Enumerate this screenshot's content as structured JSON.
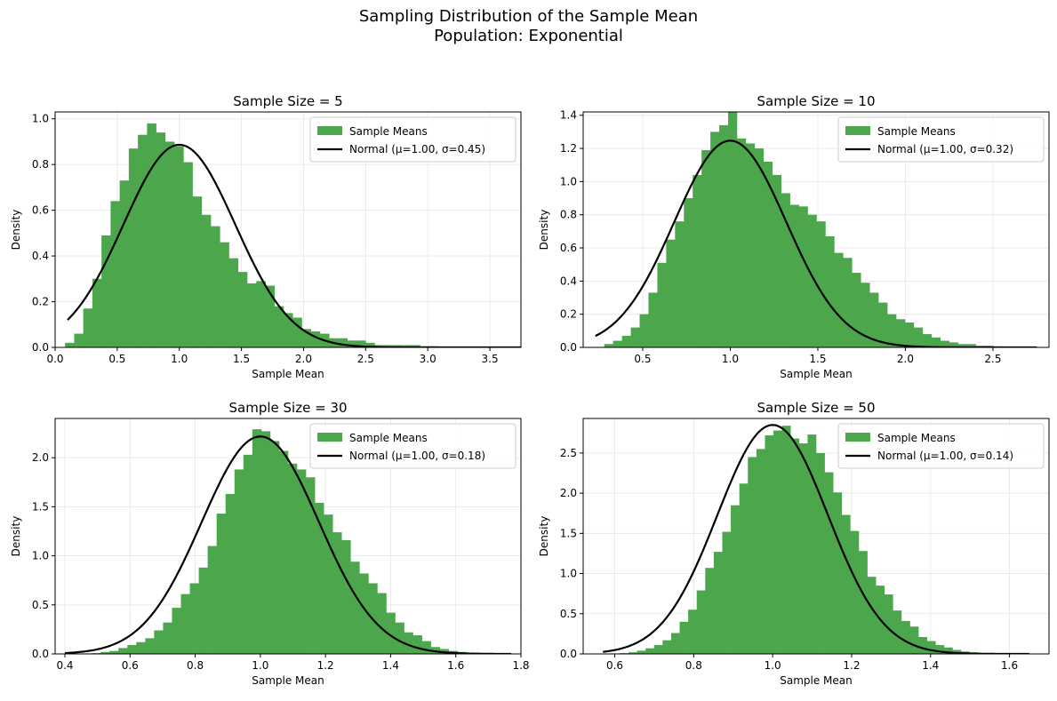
{
  "figure": {
    "title_line1": "Sampling Distribution of the Sample Mean",
    "title_line2": "Population: Exponential",
    "bar_color": "#4ca64c",
    "curve_color": "#000000"
  },
  "chart_data": [
    {
      "type": "bar",
      "title": "Sample Size = 5",
      "xlabel": "Sample Mean",
      "ylabel": "Density",
      "xlim": [
        0.0,
        3.75
      ],
      "ylim": [
        0,
        1.03
      ],
      "xticks": [
        "0.0",
        "0.5",
        "1.0",
        "1.5",
        "2.0",
        "2.5",
        "3.0",
        "3.5"
      ],
      "xtick_values": [
        0.0,
        0.5,
        1.0,
        1.5,
        2.0,
        2.5,
        3.0,
        3.5
      ],
      "yticks": [
        "0.0",
        "0.2",
        "0.4",
        "0.6",
        "0.8",
        "1.0"
      ],
      "ytick_values": [
        0.0,
        0.2,
        0.4,
        0.6,
        0.8,
        1.0
      ],
      "grid": true,
      "legend_position": "top-right",
      "bin_start": 0.08,
      "bin_width": 0.0733,
      "values": [
        0.02,
        0.06,
        0.17,
        0.3,
        0.49,
        0.64,
        0.73,
        0.87,
        0.93,
        0.98,
        0.94,
        0.9,
        0.88,
        0.81,
        0.66,
        0.58,
        0.53,
        0.46,
        0.39,
        0.33,
        0.28,
        0.29,
        0.27,
        0.18,
        0.15,
        0.13,
        0.08,
        0.07,
        0.06,
        0.04,
        0.04,
        0.03,
        0.03,
        0.02,
        0.01,
        0.01,
        0.01,
        0.01,
        0.01,
        0.005,
        0.005,
        0.003,
        0.003,
        0.003,
        0.002,
        0.002,
        0.002,
        0.001,
        0.001,
        0.001
      ],
      "series": [
        {
          "name": "Sample Means",
          "kind": "histogram"
        },
        {
          "name": "Normal (μ=1.00, σ=0.45)",
          "kind": "line",
          "mu": 1.0,
          "sigma": 0.45,
          "x_start": 0.1,
          "x_end": 3.75
        }
      ]
    },
    {
      "type": "bar",
      "title": "Sample Size = 10",
      "xlabel": "Sample Mean",
      "ylabel": "Density",
      "xlim": [
        0.16,
        2.82
      ],
      "ylim": [
        0,
        1.42
      ],
      "xticks": [
        "0.5",
        "1.0",
        "1.5",
        "2.0",
        "2.5"
      ],
      "xtick_values": [
        0.5,
        1.0,
        1.5,
        2.0,
        2.5
      ],
      "yticks": [
        "0.0",
        "0.2",
        "0.4",
        "0.6",
        "0.8",
        "1.0",
        "1.2",
        "1.4"
      ],
      "ytick_values": [
        0.0,
        0.2,
        0.4,
        0.6,
        0.8,
        1.0,
        1.2,
        1.4
      ],
      "grid": true,
      "legend_position": "top-right",
      "bin_start": 0.23,
      "bin_width": 0.0505,
      "values": [
        0.003,
        0.02,
        0.04,
        0.07,
        0.12,
        0.2,
        0.33,
        0.51,
        0.65,
        0.76,
        0.9,
        1.04,
        1.19,
        1.3,
        1.34,
        1.44,
        1.26,
        1.23,
        1.2,
        1.12,
        1.04,
        0.93,
        0.86,
        0.85,
        0.8,
        0.76,
        0.67,
        0.57,
        0.54,
        0.45,
        0.39,
        0.33,
        0.27,
        0.2,
        0.17,
        0.15,
        0.12,
        0.08,
        0.06,
        0.04,
        0.03,
        0.02,
        0.02,
        0.01,
        0.01,
        0.006,
        0.004,
        0.003,
        0.002,
        0.001
      ],
      "series": [
        {
          "name": "Sample Means",
          "kind": "histogram"
        },
        {
          "name": "Normal (μ=1.00, σ=0.32)",
          "kind": "line",
          "mu": 1.0,
          "sigma": 0.32,
          "x_start": 0.23,
          "x_end": 2.75
        }
      ]
    },
    {
      "type": "bar",
      "title": "Sample Size = 30",
      "xlabel": "Sample Mean",
      "ylabel": "Density",
      "xlim": [
        0.37,
        1.8
      ],
      "ylim": [
        0,
        2.4
      ],
      "xticks": [
        "0.4",
        "0.6",
        "0.8",
        "1.0",
        "1.2",
        "1.4",
        "1.6",
        "1.8"
      ],
      "xtick_values": [
        0.4,
        0.6,
        0.8,
        1.0,
        1.2,
        1.4,
        1.6,
        1.8
      ],
      "yticks": [
        "0.0",
        "0.5",
        "1.0",
        "1.5",
        "2.0"
      ],
      "ytick_values": [
        0.0,
        0.5,
        1.0,
        1.5,
        2.0
      ],
      "grid": true,
      "legend_position": "top-right",
      "bin_start": 0.4,
      "bin_width": 0.0274,
      "values": [
        0.002,
        0.003,
        0.005,
        0.008,
        0.02,
        0.03,
        0.06,
        0.09,
        0.12,
        0.16,
        0.24,
        0.32,
        0.47,
        0.61,
        0.72,
        0.88,
        1.1,
        1.43,
        1.63,
        1.88,
        2.03,
        2.29,
        2.27,
        2.17,
        2.07,
        1.94,
        1.88,
        1.8,
        1.54,
        1.42,
        1.24,
        1.16,
        0.94,
        0.82,
        0.72,
        0.62,
        0.42,
        0.32,
        0.22,
        0.19,
        0.13,
        0.07,
        0.05,
        0.03,
        0.02,
        0.01,
        0.008,
        0.005,
        0.003,
        0.002
      ],
      "series": [
        {
          "name": "Sample Means",
          "kind": "histogram"
        },
        {
          "name": "Normal (μ=1.00, σ=0.18)",
          "kind": "line",
          "mu": 1.0,
          "sigma": 0.18,
          "x_start": 0.4,
          "x_end": 1.77
        }
      ]
    },
    {
      "type": "bar",
      "title": "Sample Size = 50",
      "xlabel": "Sample Mean",
      "ylabel": "Density",
      "xlim": [
        0.52,
        1.7
      ],
      "ylim": [
        0,
        2.93
      ],
      "xticks": [
        "0.6",
        "0.8",
        "1.0",
        "1.2",
        "1.4",
        "1.6"
      ],
      "xtick_values": [
        0.6,
        0.8,
        1.0,
        1.2,
        1.4,
        1.6
      ],
      "yticks": [
        "0.0",
        "0.5",
        "1.0",
        "1.5",
        "2.0",
        "2.5"
      ],
      "ytick_values": [
        0.0,
        0.5,
        1.0,
        1.5,
        2.0,
        2.5
      ],
      "grid": true,
      "legend_position": "top-right",
      "bin_start": 0.57,
      "bin_width": 0.0216,
      "values": [
        0.003,
        0.006,
        0.01,
        0.02,
        0.04,
        0.07,
        0.11,
        0.17,
        0.26,
        0.4,
        0.55,
        0.79,
        1.07,
        1.27,
        1.52,
        1.85,
        2.12,
        2.45,
        2.55,
        2.72,
        2.78,
        2.84,
        2.68,
        2.62,
        2.73,
        2.5,
        2.26,
        2.01,
        1.73,
        1.53,
        1.28,
        0.96,
        0.85,
        0.74,
        0.54,
        0.41,
        0.34,
        0.21,
        0.16,
        0.11,
        0.08,
        0.05,
        0.03,
        0.02,
        0.01,
        0.008,
        0.005,
        0.003,
        0.002,
        0.001
      ],
      "series": [
        {
          "name": "Sample Means",
          "kind": "histogram"
        },
        {
          "name": "Normal (μ=1.00, σ=0.14)",
          "kind": "line",
          "mu": 1.0,
          "sigma": 0.14,
          "x_start": 0.57,
          "x_end": 1.65
        }
      ]
    }
  ]
}
